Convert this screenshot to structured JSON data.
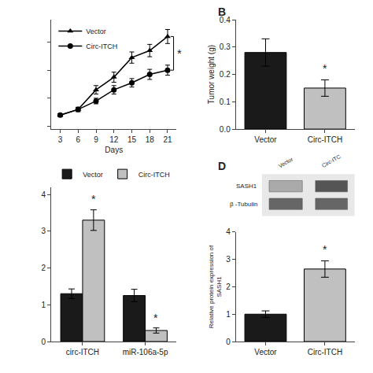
{
  "chart_data": [
    {
      "type": "line",
      "x": [
        3,
        6,
        9,
        12,
        15,
        18,
        21
      ],
      "xlabel": "Days",
      "series": [
        {
          "name": "Vector",
          "color": "#000000",
          "marker": "triangle",
          "values": [
            0.04,
            0.06,
            0.13,
            0.175,
            0.245,
            0.27,
            0.32
          ],
          "errors": [
            0.005,
            0.008,
            0.015,
            0.018,
            0.02,
            0.022,
            0.025
          ]
        },
        {
          "name": "Circ-ITCH",
          "color": "#000000",
          "marker": "circle",
          "values": [
            0.04,
            0.06,
            0.09,
            0.13,
            0.155,
            0.185,
            0.2
          ],
          "errors": [
            0.005,
            0.007,
            0.01,
            0.015,
            0.015,
            0.018,
            0.018
          ]
        }
      ],
      "xlim": [
        1.5,
        22.5
      ],
      "xticks": [
        3,
        6,
        9,
        12,
        15,
        18,
        21
      ],
      "ylim": [
        -0.01,
        0.38
      ],
      "yticks": [
        0,
        0.1,
        0.2,
        0.3
      ],
      "tick_labels": "x",
      "legend": "upper left",
      "grid": false,
      "annotations": [
        {
          "text": "*",
          "x": 22.3,
          "y": 0.26
        }
      ]
    },
    {
      "type": "bar",
      "title": "B",
      "categories": [
        "Vector",
        "Circ-ITCH"
      ],
      "values": [
        0.28,
        0.15
      ],
      "errors": [
        0.05,
        0.03
      ],
      "colors": [
        "#1a1a1a",
        "#c0c0c0"
      ],
      "ylabel": "Tumor weight (g)",
      "ylim": [
        0,
        0.4
      ],
      "yticks": [
        {
          "value": 0,
          "label": "0.0"
        },
        0.1,
        0.2,
        0.3,
        0.4
      ],
      "grid": false,
      "annotations": [
        {
          "text": "*",
          "x": "Circ-ITCH",
          "y": 0.192
        }
      ]
    },
    {
      "type": "bar",
      "categories": [
        "circ-ITCH",
        "miR-106a-5p"
      ],
      "series": [
        {
          "name": "Vector",
          "color": "#1a1a1a",
          "values": [
            1.3,
            1.25
          ],
          "errors": [
            0.13,
            0.17
          ]
        },
        {
          "name": "Circ-ITCH",
          "color": "#c0c0c0",
          "values": [
            3.3,
            0.3
          ],
          "errors": [
            0.28,
            0.07
          ]
        }
      ],
      "ylim": [
        0,
        4.2
      ],
      "yticks": [
        0,
        1,
        2,
        3,
        4
      ],
      "legend": "upper left",
      "grid": false,
      "annotations": [
        {
          "text": "*",
          "x": "circ-ITCH",
          "series": "Circ-ITCH",
          "y": 3.66
        },
        {
          "text": "*",
          "x": "miR-106a-5p",
          "series": "Circ-ITCH",
          "y": 0.42
        }
      ]
    },
    {
      "type": "bar",
      "title": "D",
      "categories": [
        "Vector",
        "Circ-ITCH"
      ],
      "values": [
        1.0,
        2.65
      ],
      "errors": [
        0.12,
        0.3
      ],
      "colors": [
        "#1a1a1a",
        "#c0c0c0"
      ],
      "ylabel": "Relative protein expression of\nSASH1",
      "ylim": [
        0,
        4
      ],
      "yticks": [
        0,
        1,
        2,
        3,
        4
      ],
      "grid": false,
      "annotations": [
        {
          "text": "*",
          "x": "Circ-ITCH",
          "y": 3.07
        }
      ],
      "inset": {
        "columns": [
          "Vector",
          "Circ-ITC"
        ],
        "rows": [
          "SASH1",
          "β -Tubulin"
        ]
      }
    }
  ]
}
